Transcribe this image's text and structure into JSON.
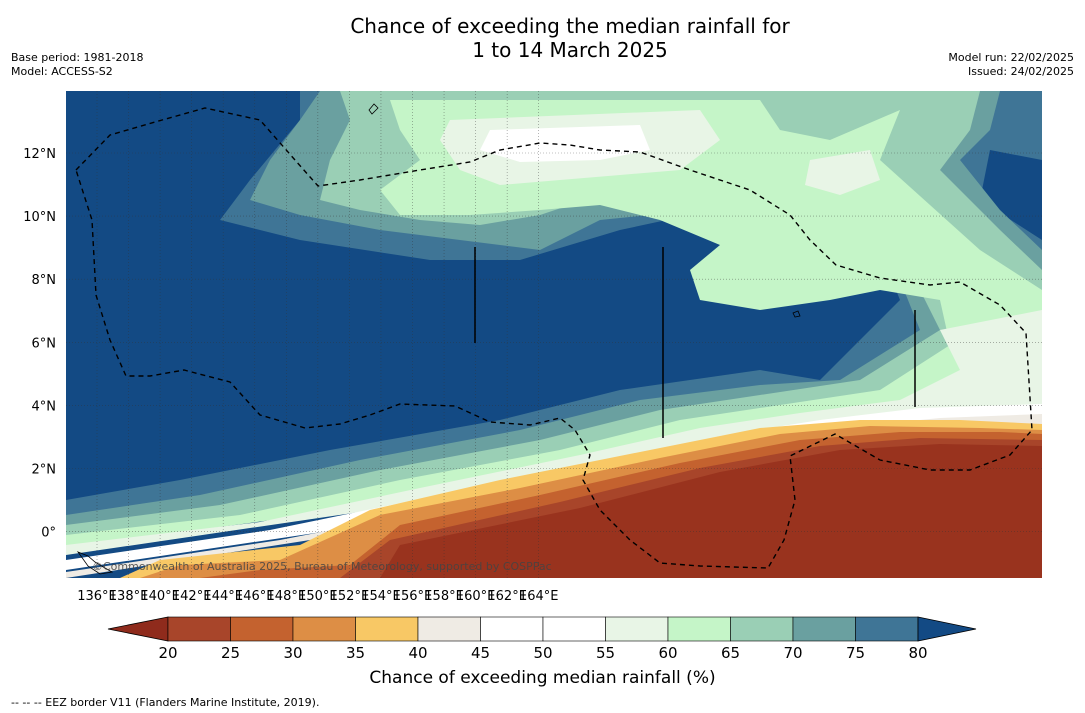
{
  "title_line1": "Chance of exceeding the median rainfall for",
  "title_line2": "1 to 14 March 2025",
  "base_period": "Base period: 1981-2018",
  "model": "Model: ACCESS-S2",
  "model_run": "Model run: 22/02/2025",
  "issued": "Issued: 24/02/2025",
  "copyright": "©Commonwealth of Australia 2025, Bureau of Meteorology, supported by COSPPac",
  "colorbar_title": "Chance of exceeding median rainfall (%)",
  "footnote": "--  --  -- EEZ border V11 (Flanders Marine Institute, 2019).",
  "x_ticks": [
    "136°E",
    "138°E",
    "140°E",
    "142°E",
    "144°E",
    "146°E",
    "148°E",
    "150°E",
    "152°E",
    "154°E",
    "156°E",
    "158°E",
    "160°E",
    "162°E",
    "164°E"
  ],
  "y_ticks": [
    "12°N",
    "10°N",
    "8°N",
    "6°N",
    "4°N",
    "2°N",
    "0°"
  ],
  "colorbar_ticks": [
    "20",
    "25",
    "30",
    "35",
    "40",
    "45",
    "50",
    "55",
    "60",
    "65",
    "70",
    "75",
    "80"
  ],
  "colorbar_colors": [
    "#8f2b1c",
    "#a8452a",
    "#c4622f",
    "#dd8e45",
    "#f8c865",
    "#efebe4",
    "#ffffff",
    "#ffffff",
    "#e8f5e6",
    "#c5f5c8",
    "#9acfb5",
    "#6aa0a0",
    "#3f7596",
    "#134a84"
  ],
  "map_colors": {
    "deep_blue": "#134a84",
    "blue": "#3f7596",
    "teal": "#6aa0a0",
    "sage": "#9acfb5",
    "mint": "#c5f5c8",
    "pale": "#e8f5e6",
    "white": "#ffffff",
    "grey": "#efebe4",
    "yellow": "#f8c865",
    "orange": "#dd8e45",
    "rust": "#c4622f",
    "brick": "#a8452a",
    "dark_red": "#99331e"
  }
}
